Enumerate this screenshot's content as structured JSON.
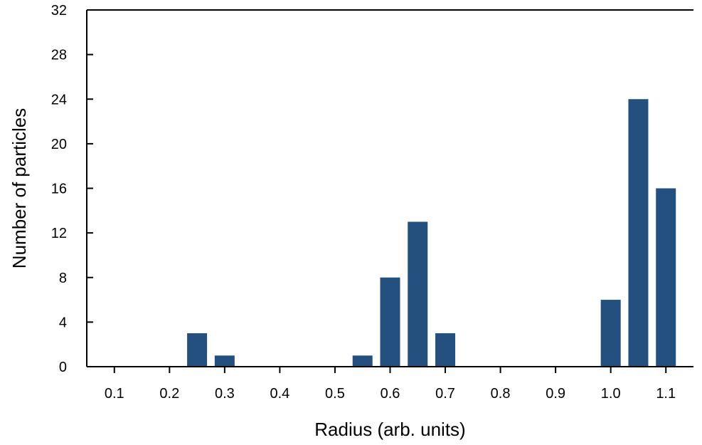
{
  "chart_data": {
    "type": "bar",
    "title": "",
    "xlabel": "Radius (arb. units)",
    "ylabel": "Number of  particles",
    "x_ticks": [
      "0.1",
      "0.2",
      "0.3",
      "0.4",
      "0.5",
      "0.6",
      "0.7",
      "0.8",
      "0.9",
      "1.0",
      "1.1"
    ],
    "x_tick_values": [
      0.1,
      0.2,
      0.3,
      0.4,
      0.5,
      0.6,
      0.7,
      0.8,
      0.9,
      1.0,
      1.1
    ],
    "xlim": [
      0.05,
      1.15
    ],
    "y_ticks": [
      "0",
      "4",
      "8",
      "12",
      "16",
      "20",
      "24",
      "28",
      "32"
    ],
    "ylim": [
      0,
      32
    ],
    "bar_color": "#23507f",
    "grid": false,
    "bins": [
      0.25,
      0.3,
      0.55,
      0.6,
      0.65,
      0.7,
      1.0,
      1.05,
      1.1
    ],
    "values": [
      3,
      1,
      1,
      8,
      13,
      3,
      6,
      24,
      16
    ]
  }
}
